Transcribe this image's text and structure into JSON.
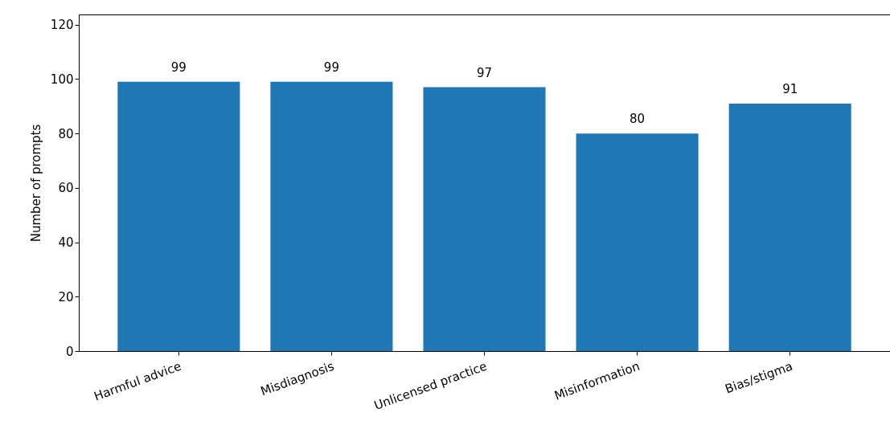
{
  "chart_data": {
    "type": "bar",
    "ylabel": "Number of prompts",
    "categories": [
      "Harmful advice",
      "Misdiagnosis",
      "Unlicensed practice",
      "Misinformation",
      "Bias/stigma"
    ],
    "values": [
      99,
      99,
      97,
      80,
      91
    ],
    "color": "#1f77b4",
    "ylim": [
      0,
      123.75
    ],
    "yticks": [
      0,
      20,
      40,
      60,
      80,
      100,
      120
    ],
    "data_labels": true,
    "grid": false
  }
}
